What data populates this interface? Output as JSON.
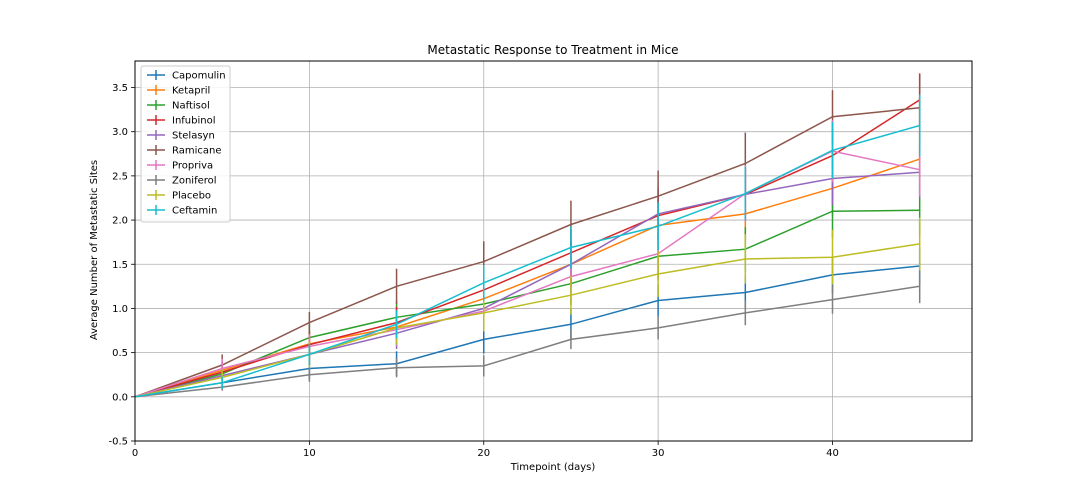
{
  "chart_data": {
    "type": "line",
    "title": "Metastatic Response to Treatment in Mice",
    "xlabel": "Timepoint (days)",
    "ylabel": "Average Number of Metastatic Sites",
    "xlim": [
      0,
      48
    ],
    "ylim": [
      -0.5,
      3.8
    ],
    "xticks": [
      0,
      10,
      20,
      30,
      40
    ],
    "yticks": [
      -0.5,
      0.0,
      0.5,
      1.0,
      1.5,
      2.0,
      2.5,
      3.0,
      3.5
    ],
    "grid": true,
    "error_bars": true,
    "legend_position": "top-left",
    "x": [
      0,
      5,
      10,
      15,
      20,
      25,
      30,
      35,
      40,
      45
    ],
    "series": [
      {
        "name": "Capomulin",
        "color": "#1f77b4",
        "values": [
          0.0,
          0.16,
          0.32,
          0.375,
          0.65,
          0.82,
          1.09,
          1.18,
          1.38,
          1.48
        ],
        "errors": [
          0.0,
          0.07,
          0.12,
          0.14,
          0.16,
          0.18,
          0.18,
          0.18,
          0.21,
          0.2
        ]
      },
      {
        "name": "Ketapril",
        "color": "#ff7f0e",
        "values": [
          0.0,
          0.3,
          0.6,
          0.79,
          1.11,
          1.5,
          1.94,
          2.07,
          2.36,
          2.69
        ],
        "errors": [
          0.0,
          0.1,
          0.14,
          0.19,
          0.22,
          0.26,
          0.28,
          0.3,
          0.31,
          0.31
        ]
      },
      {
        "name": "Naftisol",
        "color": "#2ca02c",
        "values": [
          0.0,
          0.26,
          0.67,
          0.9,
          1.05,
          1.28,
          1.59,
          1.67,
          2.1,
          2.11
        ],
        "errors": [
          0.0,
          0.09,
          0.15,
          0.18,
          0.21,
          0.24,
          0.26,
          0.25,
          0.3,
          0.28
        ]
      },
      {
        "name": "Infubinol",
        "color": "#d62728",
        "values": [
          0.0,
          0.28,
          0.59,
          0.84,
          1.21,
          1.63,
          2.05,
          2.29,
          2.73,
          3.36
        ],
        "errors": [
          0.0,
          0.1,
          0.15,
          0.18,
          0.24,
          0.27,
          0.29,
          0.3,
          0.36,
          0.3
        ]
      },
      {
        "name": "Stelasyn",
        "color": "#9467bd",
        "values": [
          0.0,
          0.24,
          0.48,
          0.72,
          1.0,
          1.5,
          2.07,
          2.29,
          2.47,
          2.54
        ],
        "errors": [
          0.0,
          0.09,
          0.13,
          0.18,
          0.22,
          0.26,
          0.3,
          0.3,
          0.3,
          0.3
        ]
      },
      {
        "name": "Ramicane",
        "color": "#8c564b",
        "values": [
          0.0,
          0.36,
          0.84,
          1.25,
          1.53,
          1.95,
          2.27,
          2.64,
          3.17,
          3.27
        ],
        "errors": [
          0.0,
          0.12,
          0.12,
          0.2,
          0.23,
          0.27,
          0.29,
          0.35,
          0.3,
          0.38
        ]
      },
      {
        "name": "Propriva",
        "color": "#e377c2",
        "values": [
          0.0,
          0.32,
          0.57,
          0.76,
          0.97,
          1.36,
          1.62,
          2.3,
          2.78,
          2.57
        ],
        "errors": [
          0.0,
          0.11,
          0.14,
          0.18,
          0.21,
          0.27,
          0.3,
          0.32,
          0.35,
          0.3
        ]
      },
      {
        "name": "Zoniferol",
        "color": "#7f7f7f",
        "values": [
          0.0,
          0.11,
          0.25,
          0.33,
          0.35,
          0.65,
          0.78,
          0.95,
          1.1,
          1.25
        ],
        "errors": [
          0.0,
          0.04,
          0.08,
          0.11,
          0.12,
          0.11,
          0.13,
          0.14,
          0.16,
          0.19
        ]
      },
      {
        "name": "Placebo",
        "color": "#bcbd22",
        "values": [
          0.0,
          0.22,
          0.48,
          0.78,
          0.95,
          1.15,
          1.39,
          1.56,
          1.58,
          1.73
        ],
        "errors": [
          0.0,
          0.09,
          0.15,
          0.19,
          0.21,
          0.22,
          0.26,
          0.28,
          0.31,
          0.3
        ]
      },
      {
        "name": "Ceftamin",
        "color": "#17becf",
        "values": [
          0.0,
          0.16,
          0.48,
          0.82,
          1.29,
          1.69,
          1.93,
          2.3,
          2.79,
          3.07
        ],
        "errors": [
          0.0,
          0.07,
          0.12,
          0.16,
          0.2,
          0.24,
          0.27,
          0.3,
          0.32,
          0.35
        ]
      }
    ]
  }
}
